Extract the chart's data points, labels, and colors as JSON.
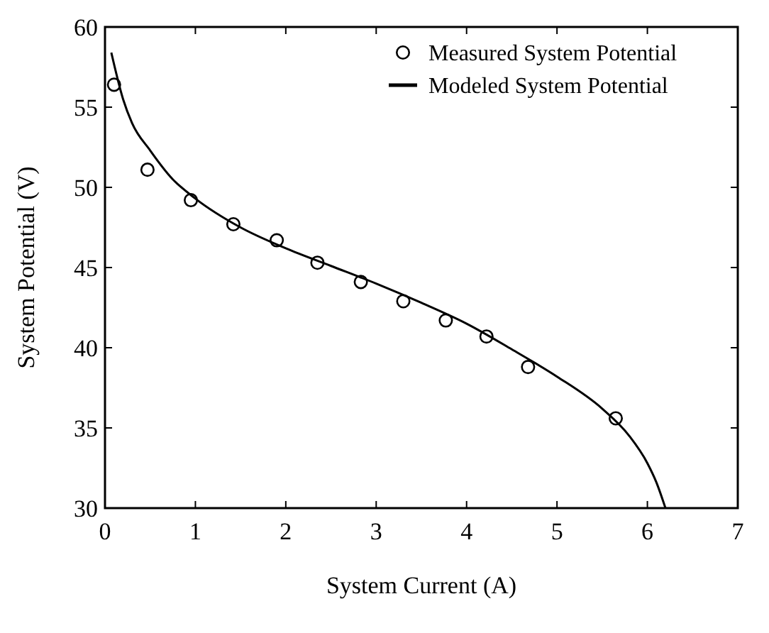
{
  "chart_data": {
    "type": "scatter",
    "xlabel": "System Current (A)",
    "ylabel": "System Potential (V)",
    "xlim": [
      0,
      7
    ],
    "ylim": [
      30,
      60
    ],
    "xticks": [
      0,
      1,
      2,
      3,
      4,
      5,
      6,
      7
    ],
    "yticks": [
      30,
      35,
      40,
      45,
      50,
      55,
      60
    ],
    "grid": false,
    "legend": "top right",
    "series": [
      {
        "name": "Measured System Potential",
        "marker": "circle",
        "color": "#000000",
        "x": [
          0.1,
          0.47,
          0.95,
          1.42,
          1.9,
          2.35,
          2.83,
          3.3,
          3.77,
          4.22,
          4.68,
          5.65
        ],
        "values": [
          56.4,
          51.1,
          49.2,
          47.7,
          46.7,
          45.3,
          44.1,
          42.9,
          41.7,
          40.7,
          38.8,
          35.6
        ]
      },
      {
        "name": "Modeled System Potential",
        "type": "line",
        "marker": "none",
        "line_style": "solid",
        "color": "#000000",
        "x": [
          0.07,
          0.2,
          0.3,
          0.5,
          0.75,
          1,
          1.5,
          2,
          2.5,
          3,
          3.5,
          4,
          4.5,
          5,
          5.5,
          5.8,
          6,
          6.1,
          6.2
        ],
        "values": [
          58.4,
          55.5,
          54,
          52.3,
          50.5,
          49.3,
          47.5,
          46.2,
          45.1,
          44,
          42.8,
          41.5,
          39.9,
          38.2,
          36.2,
          34.5,
          32.8,
          31.6,
          30
        ]
      }
    ]
  }
}
